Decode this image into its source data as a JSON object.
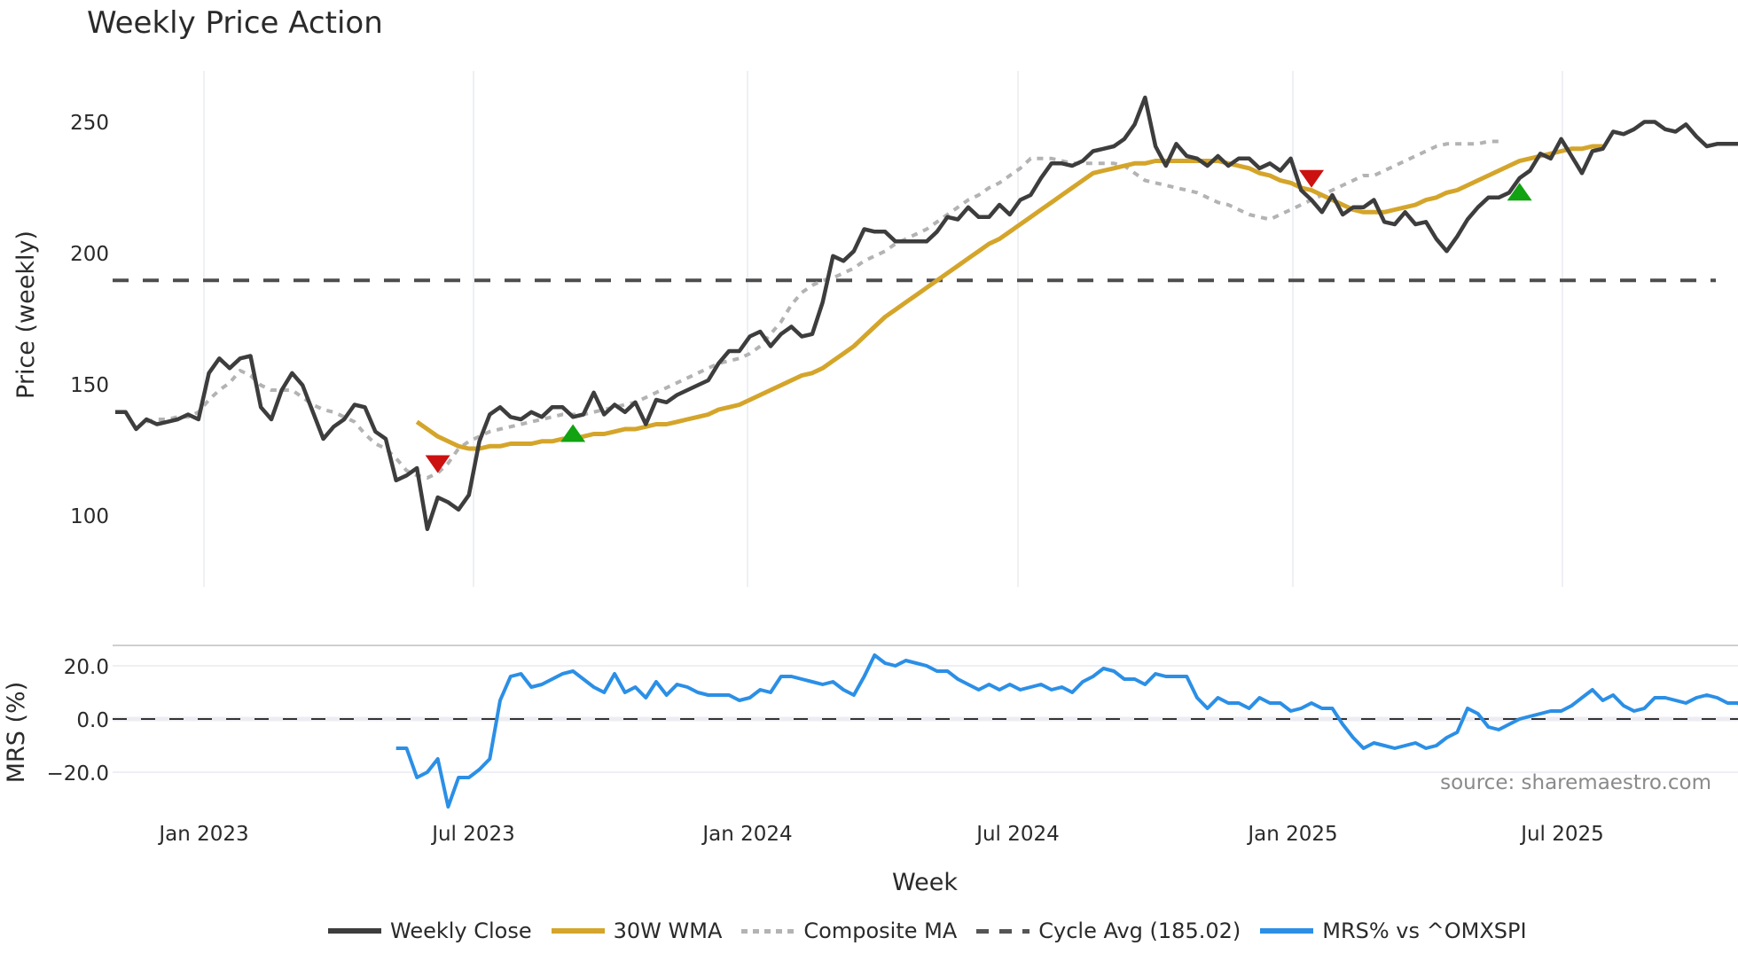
{
  "title": "Weekly Price Action",
  "source": "source: sharemaestro.com",
  "legend": [
    {
      "label": "Weekly Close",
      "color": "#3d3d3d",
      "style": "solid"
    },
    {
      "label": "30W WMA",
      "color": "#d4a52a",
      "style": "solid"
    },
    {
      "label": "Composite MA",
      "color": "#b3b3b3",
      "style": "dotted"
    },
    {
      "label": "Cycle Avg (185.02)",
      "color": "#555555",
      "style": "dashed"
    },
    {
      "label": "MRS% vs ^OMXSPI",
      "color": "#2b8fe6",
      "style": "solid"
    }
  ],
  "colors": {
    "close": "#3d3d3d",
    "wma": "#d4a52a",
    "composite": "#b3b3b3",
    "cycle": "#4d4d4d",
    "mrs": "#2b8fe6",
    "buy": "#12a312",
    "sell": "#cc1111",
    "grid": "#e8ecf2"
  },
  "chart_data": [
    {
      "type": "line",
      "title": "Weekly Price Action",
      "xlabel": "Week",
      "ylabel": "Price (weekly)",
      "x_ticks": [
        "Jan 2023",
        "Jul 2023",
        "Jan 2024",
        "Jul 2024",
        "Jan 2025",
        "Jul 2025"
      ],
      "y_ticks": [
        100,
        150,
        200,
        250
      ],
      "ylim": [
        73,
        270
      ],
      "grid": true,
      "legend_position": "bottom",
      "cycle_avg": 185.02,
      "series": [
        {
          "name": "Weekly Close",
          "values": [
            131,
            131,
            124,
            128,
            126,
            127,
            128,
            130,
            128,
            147,
            153,
            149,
            153,
            154,
            133,
            128,
            140,
            147,
            142,
            131,
            120,
            125,
            128,
            134,
            133,
            123,
            120,
            103,
            105,
            108,
            83,
            96,
            94,
            91,
            97,
            119,
            130,
            133,
            129,
            128,
            131,
            129,
            133,
            133,
            129,
            130,
            139,
            130,
            134,
            131,
            135,
            126,
            136,
            135,
            138,
            140,
            142,
            144,
            151,
            156,
            156,
            162,
            164,
            158,
            163,
            166,
            162,
            163,
            176,
            195,
            193,
            197,
            206,
            205,
            205,
            201,
            201,
            201,
            201,
            205,
            211,
            210,
            215,
            211,
            211,
            216,
            212,
            218,
            220,
            227,
            233,
            233,
            232,
            234,
            238,
            239,
            240,
            243,
            249,
            260,
            240,
            232,
            241,
            236,
            235,
            232,
            236,
            232,
            235,
            235,
            231,
            233,
            230,
            235,
            222,
            218,
            213,
            220,
            212,
            215,
            215,
            218,
            209,
            208,
            213,
            208,
            209,
            202,
            197,
            203,
            210,
            215,
            219,
            219,
            221,
            227,
            230,
            237,
            235,
            243,
            236,
            229,
            238,
            239,
            246,
            245,
            247,
            250,
            250,
            247,
            246,
            249,
            244,
            240,
            241,
            241,
            241
          ]
        },
        {
          "name": "30W WMA",
          "start_index": 29,
          "values": [
            127,
            124,
            121,
            119,
            117,
            116,
            116,
            117,
            117,
            118,
            118,
            118,
            119,
            119,
            120,
            120,
            121,
            122,
            122,
            123,
            124,
            124,
            125,
            126,
            126,
            127,
            128,
            129,
            130,
            132,
            133,
            134,
            136,
            138,
            140,
            142,
            144,
            146,
            147,
            149,
            152,
            155,
            158,
            162,
            166,
            170,
            173,
            176,
            179,
            182,
            185,
            188,
            191,
            194,
            197,
            200,
            202,
            205,
            208,
            211,
            214,
            217,
            220,
            223,
            226,
            229,
            230,
            231,
            232,
            233,
            233,
            234,
            234,
            234,
            234,
            234,
            234,
            234,
            233,
            232,
            231,
            229,
            228,
            226,
            225,
            223,
            222,
            220,
            218,
            216,
            214,
            213,
            213,
            213,
            214,
            215,
            216,
            218,
            219,
            221,
            222,
            224,
            226,
            228,
            230,
            232,
            234,
            235,
            236,
            237,
            238,
            239,
            239,
            240,
            240
          ]
        },
        {
          "name": "Composite MA",
          "start_index": 3,
          "values": [
            127,
            128,
            128,
            129,
            129,
            131,
            136,
            140,
            143,
            148,
            146,
            142,
            140,
            140,
            140,
            137,
            134,
            132,
            131,
            129,
            127,
            122,
            118,
            116,
            112,
            107,
            105,
            104,
            106,
            110,
            116,
            119,
            121,
            123,
            124,
            125,
            126,
            127,
            128,
            129,
            130,
            130,
            130,
            131,
            132,
            133,
            134,
            135,
            137,
            139,
            141,
            143,
            145,
            147,
            149,
            151,
            152,
            153,
            155,
            158,
            163,
            168,
            175,
            180,
            183,
            185,
            186,
            188,
            190,
            193,
            195,
            197,
            200,
            202,
            204,
            206,
            209,
            212,
            215,
            218,
            220,
            223,
            225,
            228,
            231,
            235,
            235,
            235,
            234,
            233,
            233,
            233,
            233,
            233,
            232,
            229,
            226,
            225,
            224,
            223,
            222,
            221,
            219,
            217,
            216,
            214,
            212,
            211,
            210,
            212,
            214,
            216,
            218,
            220,
            222,
            224,
            226,
            228,
            228,
            230,
            232,
            234,
            236,
            238,
            240,
            241,
            241,
            241,
            241,
            242,
            242
          ]
        },
        {
          "name": "Signals",
          "markers": [
            {
              "type": "sell",
              "index": 31,
              "value": 110
            },
            {
              "type": "buy",
              "index": 44,
              "value": 122
            },
            {
              "type": "sell",
              "index": 115,
              "value": 227
            },
            {
              "type": "buy",
              "index": 135,
              "value": 221
            }
          ]
        }
      ]
    },
    {
      "type": "line",
      "ylabel": "MRS (%)",
      "xlabel": "Week",
      "y_ticks": [
        -20.0,
        0.0,
        20.0
      ],
      "ylim": [
        -36,
        28
      ],
      "reference_line": 0.0,
      "series": [
        {
          "name": "MRS% vs ^OMXSPI",
          "start_index": 27,
          "values": [
            -11,
            -11,
            -22,
            -20,
            -15,
            -33,
            -22,
            -22,
            -19,
            -15,
            7,
            16,
            17,
            12,
            13,
            15,
            17,
            18,
            15,
            12,
            10,
            17,
            10,
            12,
            8,
            14,
            9,
            13,
            12,
            10,
            9,
            9,
            9,
            7,
            8,
            11,
            10,
            16,
            16,
            15,
            14,
            13,
            14,
            11,
            9,
            16,
            24,
            21,
            20,
            22,
            21,
            20,
            18,
            18,
            15,
            13,
            11,
            13,
            11,
            13,
            11,
            12,
            13,
            11,
            12,
            10,
            14,
            16,
            19,
            18,
            15,
            15,
            13,
            17,
            16,
            16,
            16,
            8,
            4,
            8,
            6,
            6,
            4,
            8,
            6,
            6,
            3,
            4,
            6,
            4,
            4,
            -2,
            -7,
            -11,
            -9,
            -10,
            -11,
            -10,
            -9,
            -11,
            -10,
            -7,
            -5,
            4,
            2,
            -3,
            -4,
            -2,
            0,
            1,
            2,
            3,
            3,
            5,
            8,
            11,
            7,
            9,
            5,
            3,
            4,
            8,
            8,
            7,
            6,
            8,
            9,
            8,
            6,
            6,
            2,
            1,
            2,
            -1
          ]
        }
      ]
    }
  ],
  "axes": {
    "price_ylabel": "Price (weekly)",
    "mrs_ylabel": "MRS (%)",
    "xlabel": "Week",
    "price_ticks": [
      "250",
      "200",
      "150",
      "100"
    ],
    "mrs_ticks": [
      "20.0",
      "0.0",
      "−20.0"
    ],
    "x_ticks": [
      "Jan 2023",
      "Jul 2023",
      "Jan 2024",
      "Jul 2024",
      "Jan 2025",
      "Jul 2025"
    ]
  }
}
